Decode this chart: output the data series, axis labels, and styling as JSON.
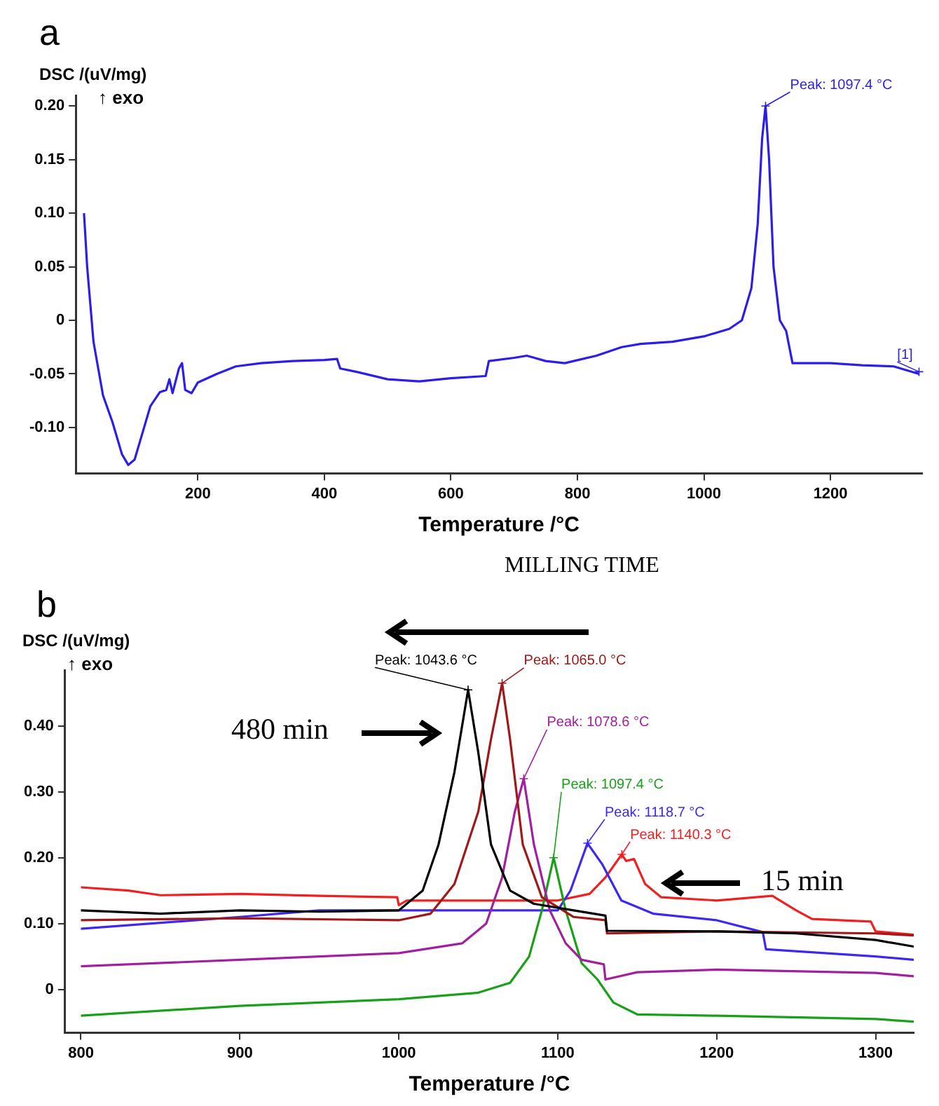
{
  "chart_data": [
    {
      "type": "line",
      "title": "a",
      "xlabel": "Temperature /°C",
      "ylabel": "DSC /(uV/mg)",
      "annotations": [
        "↑ exo",
        {
          "text": "Peak: 1097.4 °C",
          "x": 1097.4,
          "y": 0.2
        },
        {
          "text": "[1]",
          "x": 1340,
          "y": -0.048
        }
      ],
      "xlim": [
        7,
        1345
      ],
      "xticks": [
        200,
        400,
        600,
        800,
        1000,
        1200
      ],
      "ylim": [
        -0.143,
        0.21
      ],
      "yticks": [
        {
          "value": -0.1,
          "label": "-0.10"
        },
        {
          "value": -0.05,
          "label": "-0.05"
        },
        0,
        {
          "value": 0.05,
          "label": "0.05"
        },
        {
          "value": 0.1,
          "label": "0.10"
        },
        {
          "value": 0.15,
          "label": "0.15"
        },
        {
          "value": 0.2,
          "label": "0.20"
        }
      ],
      "series": [
        {
          "color": "#2a1ee8",
          "x": [
            20,
            25,
            35,
            50,
            65,
            80,
            90,
            100,
            110,
            125,
            140,
            150,
            155,
            160,
            170,
            175,
            180,
            190,
            200,
            230,
            260,
            300,
            350,
            400,
            420,
            425,
            450,
            500,
            550,
            600,
            655,
            660,
            700,
            720,
            750,
            780,
            830,
            870,
            900,
            950,
            1000,
            1040,
            1060,
            1075,
            1085,
            1092,
            1097.4,
            1103,
            1110,
            1120,
            1130,
            1140,
            1150,
            1200,
            1250,
            1300,
            1340
          ],
          "values": [
            0.1,
            0.05,
            -0.02,
            -0.07,
            -0.095,
            -0.125,
            -0.135,
            -0.13,
            -0.11,
            -0.08,
            -0.067,
            -0.065,
            -0.055,
            -0.068,
            -0.045,
            -0.04,
            -0.065,
            -0.068,
            -0.058,
            -0.05,
            -0.043,
            -0.04,
            -0.038,
            -0.037,
            -0.036,
            -0.045,
            -0.048,
            -0.055,
            -0.057,
            -0.054,
            -0.052,
            -0.038,
            -0.035,
            -0.033,
            -0.038,
            -0.04,
            -0.033,
            -0.025,
            -0.022,
            -0.02,
            -0.015,
            -0.008,
            0.0,
            0.03,
            0.09,
            0.17,
            0.2,
            0.15,
            0.05,
            0.0,
            -0.01,
            -0.04,
            -0.04,
            -0.04,
            -0.042,
            -0.043,
            -0.05
          ]
        }
      ]
    },
    {
      "type": "line",
      "title": "b",
      "xlabel": "Temperature /°C",
      "ylabel": "DSC /(uV/mg)",
      "annotations": [
        "↑ exo",
        "MILLING TIME",
        "480 min",
        "15 min",
        {
          "text": "Peak: 1043.6 °C",
          "x": 1043.6,
          "y": 0.455
        },
        {
          "text": "Peak: 1065.0 °C",
          "x": 1065.0,
          "y": 0.465
        },
        {
          "text": "Peak: 1078.6 °C",
          "x": 1078.6,
          "y": 0.32
        },
        {
          "text": "Peak: 1097.4 °C",
          "x": 1097.4,
          "y": 0.2
        },
        {
          "text": "Peak: 1118.7 °C",
          "x": 1118.7,
          "y": 0.222
        },
        {
          "text": "Peak: 1140.3 °C",
          "x": 1140.3,
          "y": 0.205
        }
      ],
      "xlim": [
        790,
        1324
      ],
      "xticks": [
        800,
        900,
        1000,
        1100,
        1200,
        1300
      ],
      "ylim": [
        -0.066,
        0.485
      ],
      "yticks": [
        0,
        {
          "value": 0.1,
          "label": "0.10"
        },
        {
          "value": 0.2,
          "label": "0.20"
        },
        {
          "value": 0.3,
          "label": "0.30"
        },
        {
          "value": 0.4,
          "label": "0.40"
        }
      ],
      "series": [
        {
          "color": "#000000",
          "x": [
            800,
            850,
            900,
            950,
            1000,
            1015,
            1025,
            1035,
            1043.6,
            1050,
            1058,
            1070,
            1085,
            1110,
            1130,
            1131,
            1200,
            1250,
            1300,
            1324
          ],
          "values": [
            0.12,
            0.115,
            0.12,
            0.118,
            0.12,
            0.15,
            0.22,
            0.33,
            0.455,
            0.36,
            0.22,
            0.15,
            0.13,
            0.12,
            0.112,
            0.089,
            0.088,
            0.085,
            0.075,
            0.065
          ]
        },
        {
          "color": "#a01818",
          "x": [
            800,
            900,
            1000,
            1020,
            1035,
            1050,
            1058,
            1065,
            1070,
            1078,
            1090,
            1110,
            1130,
            1131,
            1200,
            1300,
            1324
          ],
          "values": [
            0.105,
            0.108,
            0.105,
            0.115,
            0.16,
            0.27,
            0.38,
            0.465,
            0.38,
            0.22,
            0.14,
            0.11,
            0.105,
            0.085,
            0.088,
            0.085,
            0.082
          ]
        },
        {
          "color": "#a020a0",
          "x": [
            800,
            900,
            1000,
            1040,
            1055,
            1065,
            1073,
            1078.6,
            1085,
            1095,
            1105,
            1115,
            1129,
            1130,
            1150,
            1200,
            1300,
            1324
          ],
          "values": [
            0.035,
            0.045,
            0.055,
            0.07,
            0.1,
            0.17,
            0.27,
            0.32,
            0.22,
            0.12,
            0.07,
            0.045,
            0.038,
            0.015,
            0.026,
            0.03,
            0.025,
            0.02
          ]
        },
        {
          "color": "#18a018",
          "x": [
            800,
            900,
            1000,
            1050,
            1070,
            1082,
            1090,
            1097.4,
            1105,
            1115,
            1125,
            1135,
            1150,
            1200,
            1300,
            1324
          ],
          "values": [
            -0.04,
            -0.025,
            -0.015,
            -0.005,
            0.01,
            0.05,
            0.12,
            0.2,
            0.12,
            0.04,
            0.015,
            -0.02,
            -0.038,
            -0.04,
            -0.045,
            -0.049
          ]
        },
        {
          "color": "#3c28f0",
          "x": [
            800,
            900,
            950,
            1000,
            1100,
            1108,
            1118.7,
            1128,
            1140,
            1160,
            1200,
            1229,
            1231,
            1300,
            1324
          ],
          "values": [
            0.092,
            0.11,
            0.12,
            0.12,
            0.12,
            0.15,
            0.222,
            0.19,
            0.135,
            0.115,
            0.105,
            0.087,
            0.061,
            0.05,
            0.045
          ]
        },
        {
          "color": "#f02020",
          "x": [
            800,
            830,
            850,
            900,
            950,
            999,
            1000,
            1005,
            1050,
            1100,
            1120,
            1130,
            1140.3,
            1143,
            1148,
            1155,
            1165,
            1200,
            1235,
            1250,
            1260,
            1297,
            1300,
            1324
          ],
          "values": [
            0.155,
            0.15,
            0.143,
            0.145,
            0.142,
            0.14,
            0.128,
            0.135,
            0.135,
            0.135,
            0.145,
            0.17,
            0.205,
            0.195,
            0.198,
            0.16,
            0.14,
            0.135,
            0.142,
            0.12,
            0.107,
            0.103,
            0.088,
            0.083
          ]
        }
      ]
    }
  ]
}
